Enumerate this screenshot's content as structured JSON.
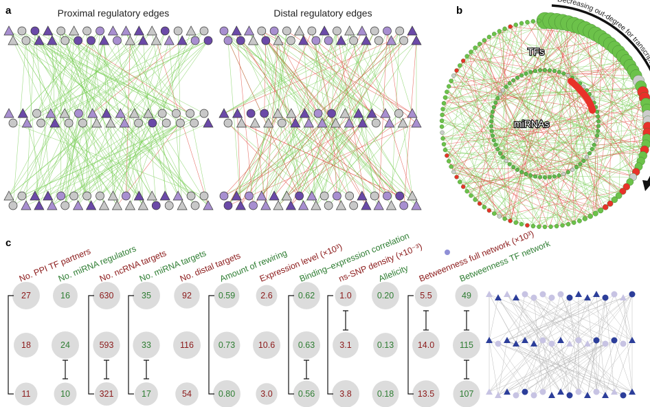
{
  "panels": {
    "a": {
      "letter": "a",
      "left_title": "Proximal regulatory edges",
      "right_title": "Distal regulatory edges"
    },
    "b": {
      "letter": "b",
      "arrow_label": "Decreasing out-degree for transcription factors and miRNAs",
      "tfs_label": "TFs",
      "mirnas_label": "miRNAs"
    },
    "c": {
      "letter": "c",
      "columns": [
        {
          "label": "No. PPI TF partners",
          "color": "red",
          "values": [
            "27",
            "18",
            "11"
          ]
        },
        {
          "label": "No. miRNA regulators",
          "color": "green",
          "values": [
            "16",
            "24",
            "10"
          ]
        },
        {
          "label": "No. ncRNA targets",
          "color": "red",
          "values": [
            "630",
            "593",
            "321"
          ]
        },
        {
          "label": "No. miRNA targets",
          "color": "green",
          "values": [
            "35",
            "33",
            "17"
          ]
        },
        {
          "label": "No. distal targets",
          "color": "red",
          "values": [
            "92",
            "116",
            "54"
          ]
        },
        {
          "label": "Amount of rewiring",
          "color": "green",
          "values": [
            "0.59",
            "0.73",
            "0.80"
          ]
        },
        {
          "label": "Expression level (×10³)",
          "color": "red",
          "values": [
            "2.6",
            "10.6",
            "3.0"
          ]
        },
        {
          "label": "Binding–expression correlation",
          "color": "green",
          "values": [
            "0.62",
            "0.63",
            "0.56"
          ]
        },
        {
          "label": "ns-SNP density (×10⁻³)",
          "color": "red",
          "values": [
            "1.0",
            "3.1",
            "3.8"
          ]
        },
        {
          "label": "Allelicity",
          "color": "green",
          "values": [
            "0.20",
            "0.13",
            "0.18"
          ]
        },
        {
          "label": "Betweenness full network (×10³)",
          "color": "red",
          "values": [
            "5.5",
            "14.0",
            "13.5"
          ]
        },
        {
          "label": "Betweenness TF network",
          "color": "green",
          "values": [
            "49",
            "115",
            "107"
          ]
        }
      ]
    }
  },
  "colors": {
    "red_text": "#8b1a1a",
    "green_text": "#2e7d32",
    "edge_green": "#7ccf5a",
    "edge_red": "#e0453a",
    "node_grey": "#c8c8c8",
    "node_purple": "#6b4aa8",
    "node_lilac": "#a88fd0",
    "node_blue": "#2c3e9a",
    "bubble": "#dcdcdc"
  }
}
